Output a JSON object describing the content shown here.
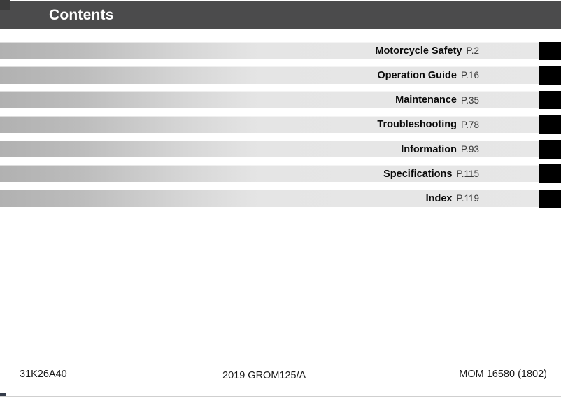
{
  "header": {
    "title": "Contents"
  },
  "contents": {
    "items": [
      {
        "label": "Motorcycle Safety",
        "page": "P.2"
      },
      {
        "label": "Operation Guide",
        "page": "P.16"
      },
      {
        "label": "Maintenance",
        "page": "P.35"
      },
      {
        "label": "Troubleshooting",
        "page": "P.78"
      },
      {
        "label": "Information",
        "page": "P.93"
      },
      {
        "label": "Specifications",
        "page": "P.115"
      },
      {
        "label": "Index",
        "page": "P.119"
      }
    ]
  },
  "footer": {
    "left": "31K26A40",
    "center": "2019 GROM125/A",
    "right": "MOM 16580 (1802)"
  },
  "colors": {
    "header_bar": "#4b4b4c",
    "corner_mark": "#3c3c3c",
    "tab_marker": "#000000",
    "bar_gradient_start": "#b1b1b1",
    "bar_gradient_end": "#e7e7e7",
    "page_number_text": "#3c3c3c"
  }
}
